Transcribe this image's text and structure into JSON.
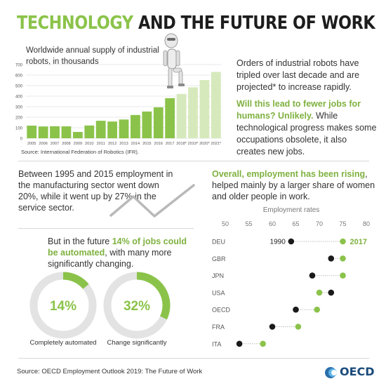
{
  "title": {
    "part1": "TECHNOLOGY",
    "part2": "AND THE FUTURE OF WORK"
  },
  "robot_chart": {
    "label": "Worldwide annual supply of industrial robots, in thousands",
    "source": "Source: International Federation of Robotics (IFR).",
    "chart_data": {
      "type": "bar",
      "categories": [
        "2005",
        "2006",
        "2007",
        "2008",
        "2009",
        "2010",
        "2011",
        "2012",
        "2013",
        "2014",
        "2015",
        "2016",
        "2017",
        "2018*",
        "2019*",
        "2020*",
        "2021*"
      ],
      "values": [
        120,
        112,
        114,
        113,
        60,
        121,
        166,
        159,
        178,
        221,
        254,
        294,
        381,
        421,
        484,
        553,
        630
      ],
      "projected": [
        false,
        false,
        false,
        false,
        false,
        false,
        false,
        false,
        false,
        false,
        false,
        false,
        false,
        true,
        true,
        true,
        true
      ],
      "yticks": [
        0,
        100,
        200,
        300,
        400,
        500,
        600,
        700
      ],
      "ylim": [
        0,
        700
      ],
      "grid": true,
      "colors": {
        "actual": "#8bc34a",
        "projected": "#d6e9bc"
      }
    }
  },
  "orders_text": "Orders of industrial robots have tripled over last decade and are projected* to increase rapidly.",
  "fewer_jobs": {
    "q": "Will this lead to fewer jobs for humans? Unlikely.",
    "rest": " While technological progress makes some occupations obsolete, it also creates new jobs."
  },
  "employment_text": "Between 1995 and 2015 employment in the manufacturing sector went down 20%, while it went up by 27% in the service sector.",
  "rising": {
    "hl": "Overall, employment has been rising",
    "rest": ", helped mainly by a larger share of women and older people in work."
  },
  "future": {
    "pre": "But in the future ",
    "hl": "14% of jobs could be automated",
    "post": ", with many more significantly changing."
  },
  "donuts": [
    {
      "value": 14,
      "label_value": "14%",
      "caption": "Completely automated"
    },
    {
      "value": 32,
      "label_value": "32%",
      "caption": "Change significantly"
    }
  ],
  "employment_chart": {
    "chart_data": {
      "type": "dot",
      "title": "Employment rates",
      "xticks": [
        50,
        55,
        60,
        65,
        70,
        75,
        80
      ],
      "xlim": [
        50,
        80
      ],
      "series_labels": {
        "start": "1990",
        "end": "2017"
      },
      "rows": [
        {
          "country": "DEU",
          "v1990": 64,
          "v2017": 75
        },
        {
          "country": "GBR",
          "v1990": 72.5,
          "v2017": 75
        },
        {
          "country": "JPN",
          "v1990": 68.5,
          "v2017": 75
        },
        {
          "country": "USA",
          "v1990": 72.5,
          "v2017": 70
        },
        {
          "country": "OECD",
          "v1990": 65,
          "v2017": 69.5
        },
        {
          "country": "FRA",
          "v1990": 60,
          "v2017": 65.5
        },
        {
          "country": "ITA",
          "v1990": 53,
          "v2017": 58
        }
      ],
      "colors": {
        "y1990": "#1a1a1a",
        "y2017": "#8bc34a"
      }
    }
  },
  "footer": {
    "source": "Source: OECD Employment Outlook 2019: The Future of Work",
    "logo": "OECD"
  }
}
